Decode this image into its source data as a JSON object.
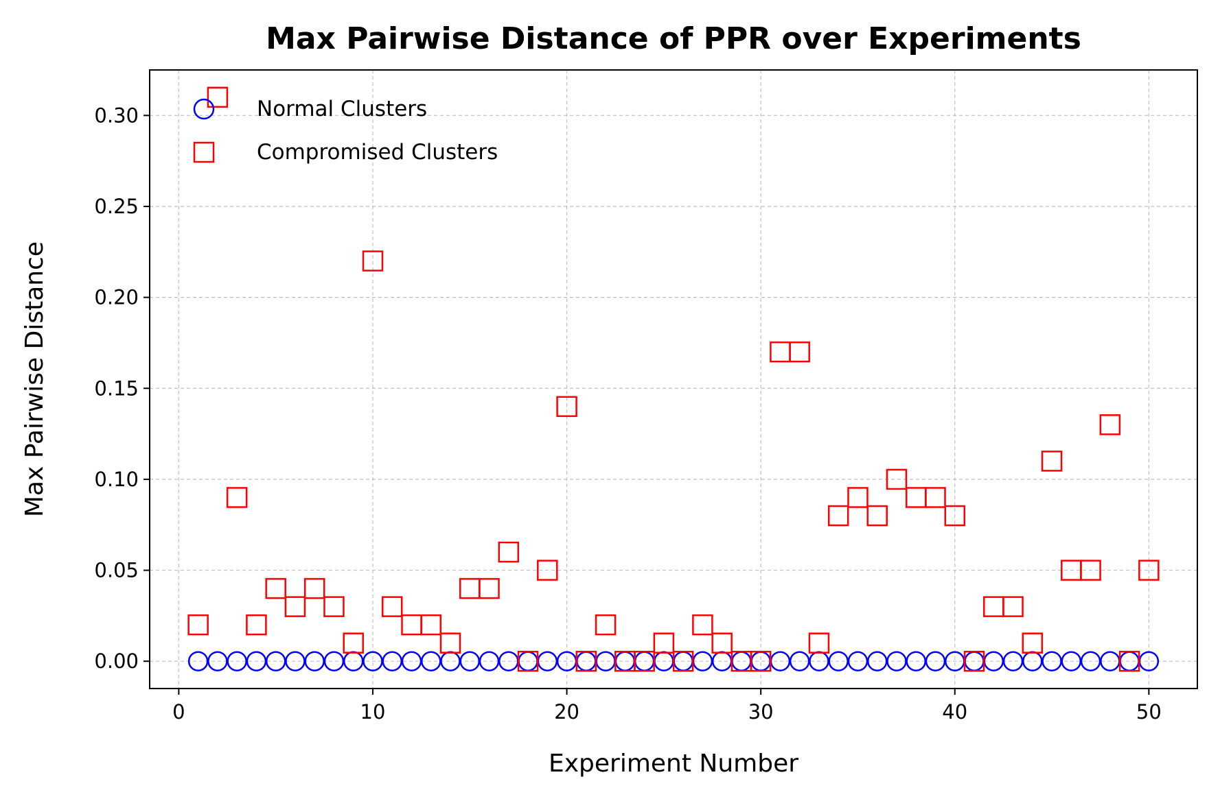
{
  "chart_data": {
    "type": "scatter",
    "title": "Max Pairwise Distance of PPR over Experiments",
    "xlabel": "Experiment Number",
    "ylabel": "Max Pairwise Distance",
    "xlim": [
      -1.5,
      52.5
    ],
    "ylim": [
      -0.015,
      0.325
    ],
    "xticks": [
      0,
      10,
      20,
      30,
      40,
      50
    ],
    "yticks": [
      0.0,
      0.05,
      0.1,
      0.15,
      0.2,
      0.25,
      0.3
    ],
    "xtick_labels": [
      "0",
      "10",
      "20",
      "30",
      "40",
      "50"
    ],
    "ytick_labels": [
      "0.00",
      "0.05",
      "0.10",
      "0.15",
      "0.20",
      "0.25",
      "0.30"
    ],
    "grid": true,
    "legend_position": "upper-left",
    "series": [
      {
        "name": "Normal Clusters",
        "marker": "circle",
        "color": "#0000ff",
        "x": [
          1,
          2,
          3,
          4,
          5,
          6,
          7,
          8,
          9,
          10,
          11,
          12,
          13,
          14,
          15,
          16,
          17,
          18,
          19,
          20,
          21,
          22,
          23,
          24,
          25,
          26,
          27,
          28,
          29,
          30,
          31,
          32,
          33,
          34,
          35,
          36,
          37,
          38,
          39,
          40,
          41,
          42,
          43,
          44,
          45,
          46,
          47,
          48,
          49,
          50
        ],
        "y": [
          0,
          0,
          0,
          0,
          0,
          0,
          0,
          0,
          0,
          0,
          0,
          0,
          0,
          0,
          0,
          0,
          0,
          0,
          0,
          0,
          0,
          0,
          0,
          0,
          0,
          0,
          0,
          0,
          0,
          0,
          0,
          0,
          0,
          0,
          0,
          0,
          0,
          0,
          0,
          0,
          0,
          0,
          0,
          0,
          0,
          0,
          0,
          0,
          0,
          0
        ]
      },
      {
        "name": "Compromised Clusters",
        "marker": "square",
        "color": "#ff0000",
        "x": [
          1,
          2,
          3,
          4,
          5,
          6,
          7,
          8,
          9,
          10,
          11,
          12,
          13,
          14,
          15,
          16,
          17,
          18,
          19,
          20,
          21,
          22,
          23,
          24,
          25,
          26,
          27,
          28,
          29,
          30,
          31,
          32,
          33,
          34,
          35,
          36,
          37,
          38,
          39,
          40,
          41,
          42,
          43,
          44,
          45,
          46,
          47,
          48,
          49,
          50
        ],
        "y": [
          0.02,
          0.31,
          0.09,
          0.02,
          0.04,
          0.03,
          0.04,
          0.03,
          0.01,
          0.22,
          0.03,
          0.02,
          0.02,
          0.01,
          0.04,
          0.04,
          0.06,
          0.0,
          0.05,
          0.14,
          0.0,
          0.02,
          0.0,
          0.0,
          0.01,
          0.0,
          0.02,
          0.01,
          0.0,
          0.0,
          0.17,
          0.17,
          0.01,
          0.08,
          0.09,
          0.08,
          0.1,
          0.09,
          0.09,
          0.08,
          0.0,
          0.03,
          0.03,
          0.01,
          0.11,
          0.05,
          0.05,
          0.13,
          0.0,
          0.05
        ]
      }
    ]
  }
}
